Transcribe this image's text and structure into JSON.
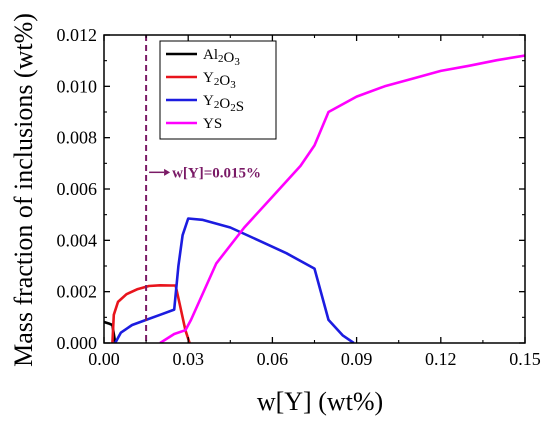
{
  "chart_data": {
    "type": "line",
    "xlabel": "w[Y] (wt%)",
    "ylabel": "Mass fraction of inclusions (wt%)",
    "xlim": [
      0,
      0.15
    ],
    "ylim": [
      0,
      0.012
    ],
    "xticks": [
      0.0,
      0.03,
      0.06,
      0.09,
      0.12,
      0.15
    ],
    "xtick_labels": [
      "0.00",
      "0.03",
      "0.06",
      "0.09",
      "0.12",
      "0.15"
    ],
    "yticks": [
      0,
      0.002,
      0.004,
      0.006,
      0.008,
      0.01,
      0.012
    ],
    "ytick_labels": [
      "0.000",
      "0.002",
      "0.004",
      "0.006",
      "0.008",
      "0.010",
      "0.012"
    ],
    "grid": false,
    "legend_position": "top-left",
    "series": [
      {
        "name_parts": [
          [
            "Al",
            ""
          ],
          [
            "2",
            "sub"
          ],
          [
            "O",
            ""
          ],
          [
            "3",
            "sub"
          ]
        ],
        "color": "#000000",
        "x": [
          0.0,
          0.002,
          0.003,
          0.004
        ],
        "y": [
          0.00082,
          0.00075,
          0.0007,
          0.0
        ]
      },
      {
        "name_parts": [
          [
            "Y",
            ""
          ],
          [
            "2",
            "sub"
          ],
          [
            "O",
            ""
          ],
          [
            "3",
            "sub"
          ]
        ],
        "color": "#e8141c",
        "x": [
          0.003,
          0.0035,
          0.005,
          0.008,
          0.012,
          0.016,
          0.02,
          0.024,
          0.0255,
          0.027,
          0.029,
          0.0305
        ],
        "y": [
          0.0,
          0.0011,
          0.0016,
          0.0019,
          0.0021,
          0.00222,
          0.00225,
          0.00224,
          0.00224,
          0.0015,
          0.0005,
          0.0
        ]
      },
      {
        "name_parts": [
          [
            "Y",
            ""
          ],
          [
            "2",
            "sub"
          ],
          [
            "O",
            ""
          ],
          [
            "2",
            "sub"
          ],
          [
            "S",
            ""
          ]
        ],
        "color": "#1c1ce0",
        "x": [
          0.004,
          0.006,
          0.01,
          0.015,
          0.02,
          0.025,
          0.0265,
          0.028,
          0.03,
          0.035,
          0.045,
          0.055,
          0.065,
          0.075,
          0.08,
          0.085,
          0.089
        ],
        "y": [
          0.0,
          0.0004,
          0.0007,
          0.0009,
          0.0011,
          0.0013,
          0.003,
          0.0042,
          0.00485,
          0.0048,
          0.0045,
          0.004,
          0.0035,
          0.0029,
          0.0009,
          0.0003,
          0.0
        ]
      },
      {
        "name_parts": [
          [
            "YS",
            ""
          ]
        ],
        "color": "#ff00ff",
        "x": [
          0.02,
          0.025,
          0.029,
          0.031,
          0.04,
          0.05,
          0.06,
          0.07,
          0.075,
          0.08,
          0.09,
          0.1,
          0.11,
          0.12,
          0.13,
          0.14,
          0.15
        ],
        "y": [
          0.0,
          0.00035,
          0.0005,
          0.0009,
          0.0031,
          0.0045,
          0.0057,
          0.0069,
          0.0077,
          0.009,
          0.0096,
          0.01,
          0.0103,
          0.0106,
          0.0108,
          0.01102,
          0.0112
        ]
      }
    ],
    "annotations": [
      {
        "type": "vline",
        "x": 0.015,
        "color": "#7a1a66",
        "style": "dashed",
        "text": "w[Y]=0.015%",
        "text_y": 0.00665
      }
    ]
  }
}
